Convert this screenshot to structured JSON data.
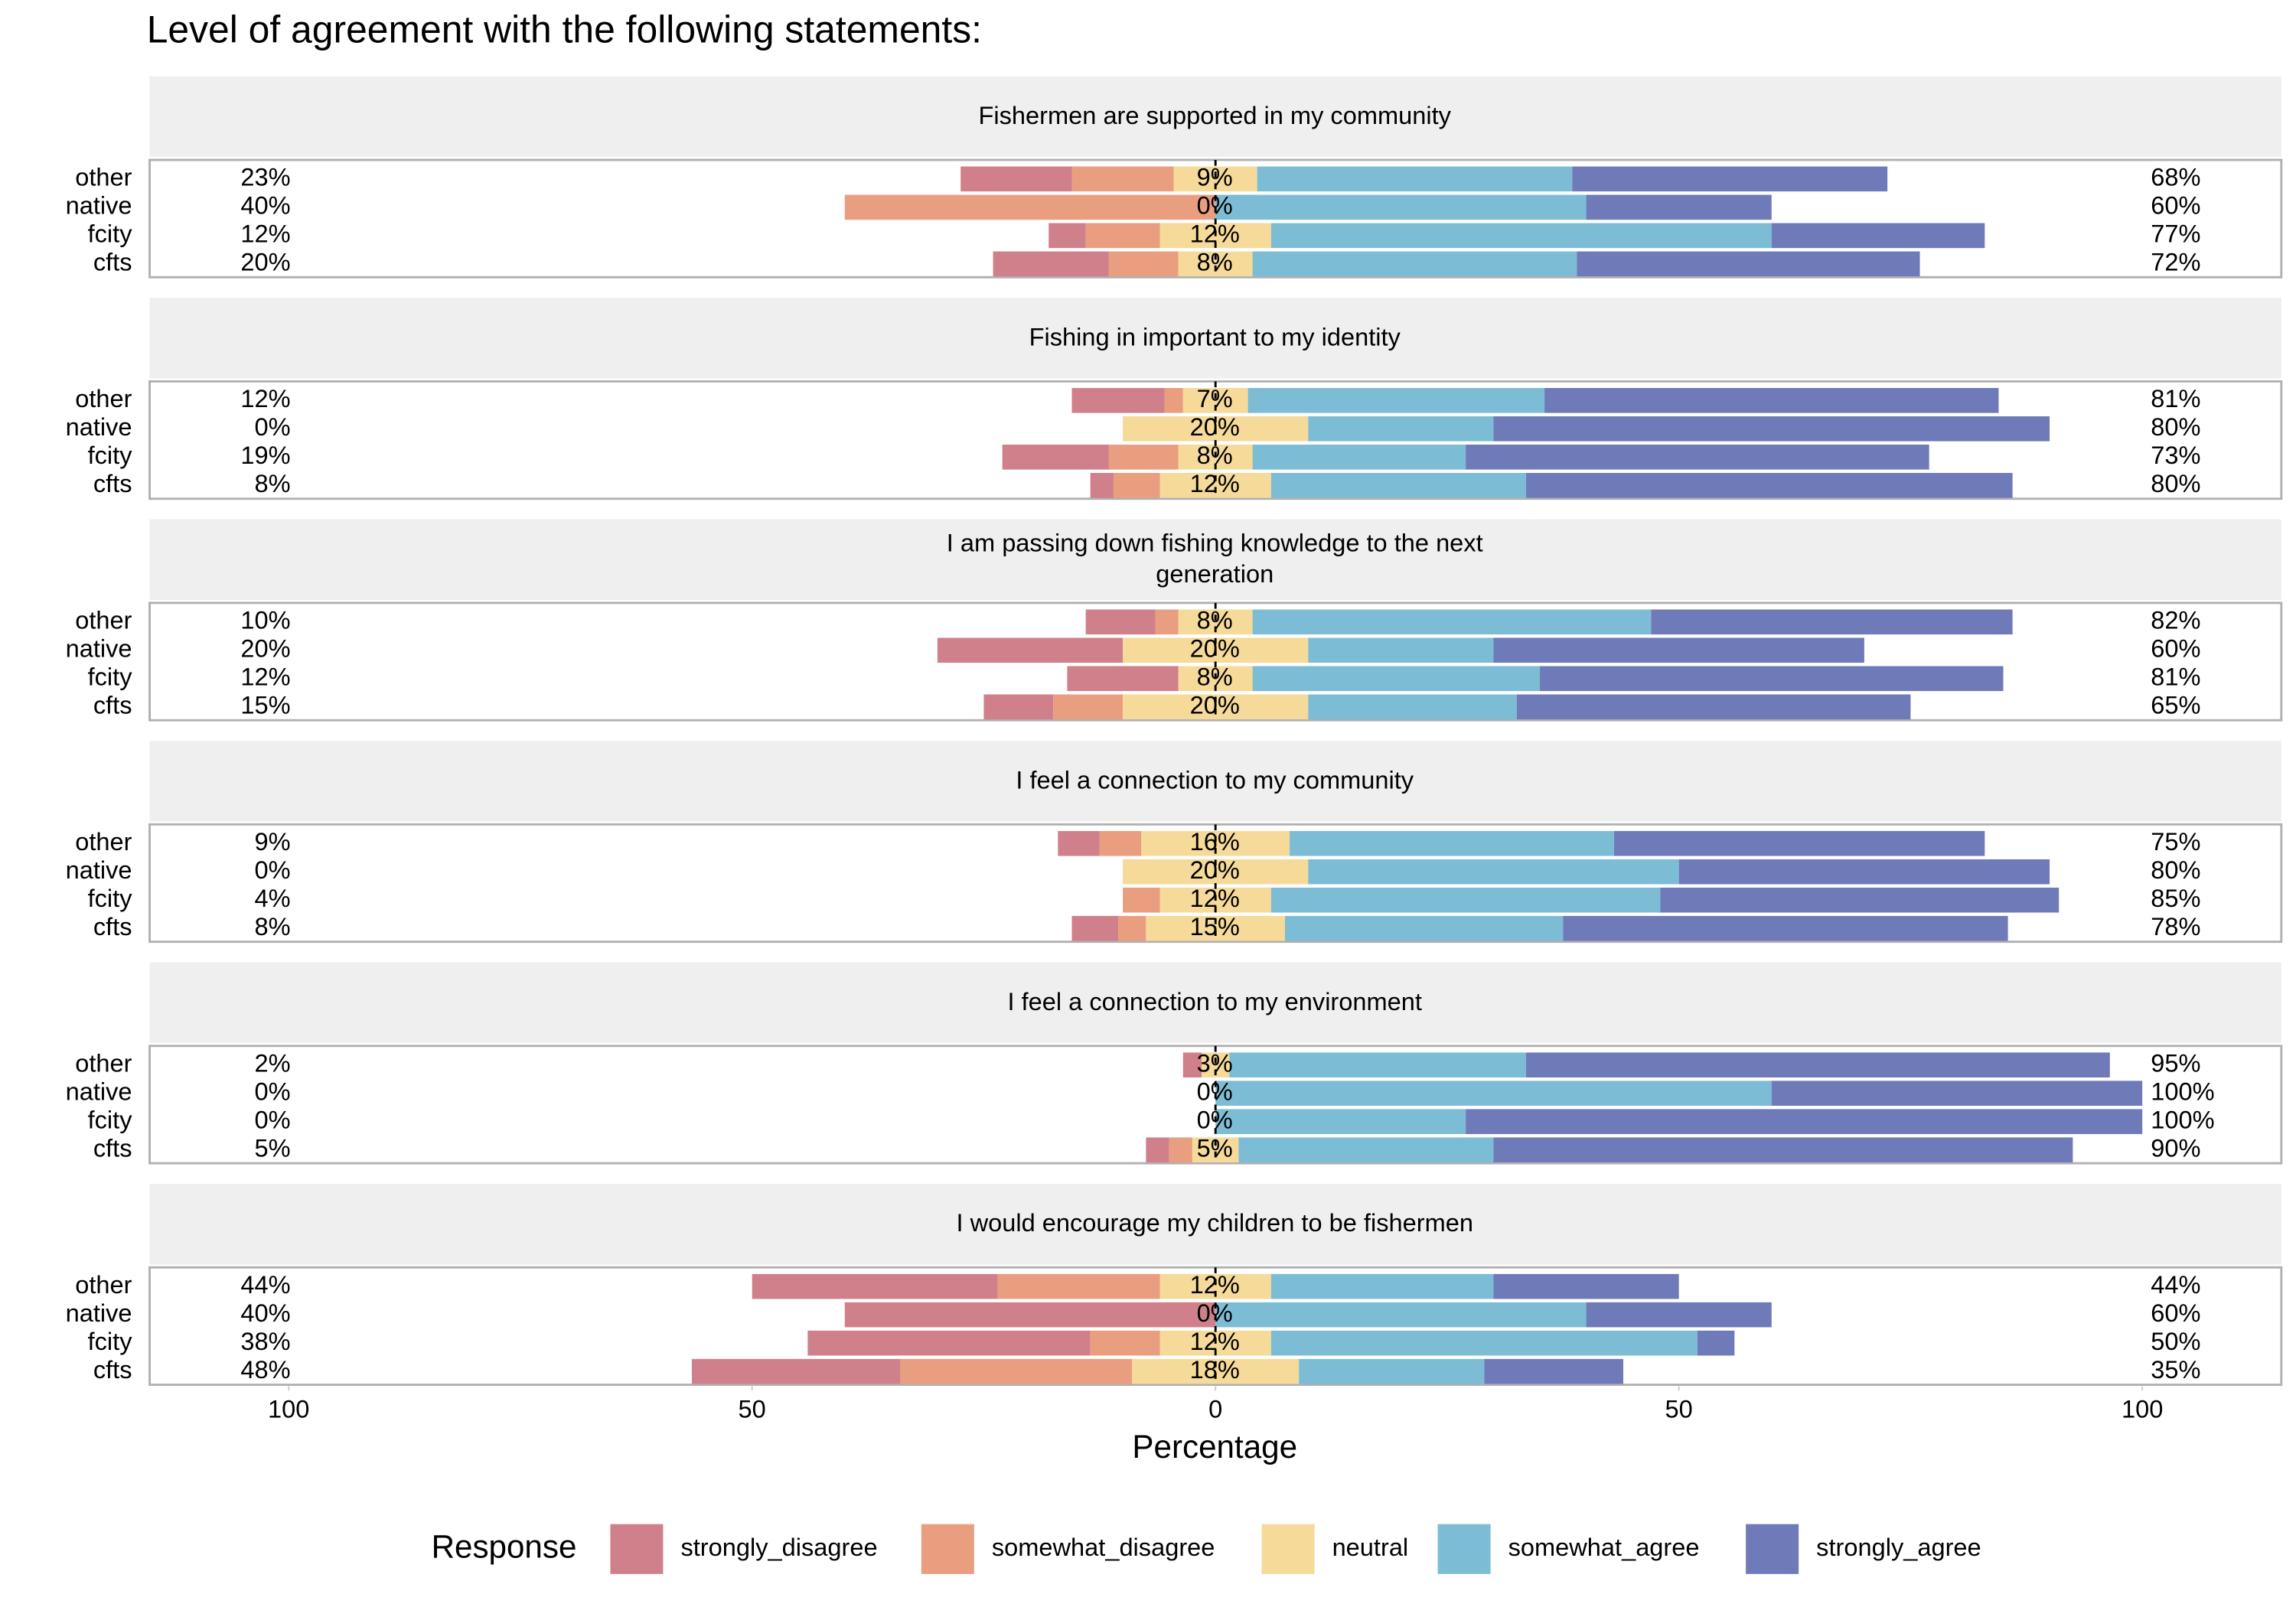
{
  "chart_data": {
    "type": "diverging_bar",
    "title": "Level of agreement with the following statements:",
    "xlabel": "Percentage",
    "legend_title": "Response",
    "responses": [
      {
        "name": "strongly_disagree",
        "color": "#d0808a"
      },
      {
        "name": "somewhat_disagree",
        "color": "#e99e80"
      },
      {
        "name": "neutral",
        "color": "#f5da9a"
      },
      {
        "name": "somewhat_agree",
        "color": "#7cbdd5"
      },
      {
        "name": "strongly_agree",
        "color": "#6f7ab9"
      }
    ],
    "xlim": [
      -115,
      115
    ],
    "xticks": [
      {
        "value": -100,
        "label": "100"
      },
      {
        "value": -50,
        "label": "50"
      },
      0,
      50,
      100
    ],
    "panels": [
      {
        "title_lines": [
          "Fishermen are supported in my community"
        ],
        "categories": [
          "other",
          "native",
          "fcity",
          "cfts"
        ],
        "values": [
          [
            12,
            11,
            9,
            34,
            34
          ],
          [
            0,
            40,
            0,
            40,
            20
          ],
          [
            4,
            8,
            12,
            54,
            23
          ],
          [
            12.5,
            7.5,
            8,
            35,
            37
          ]
        ],
        "low_labels": [
          "23%",
          "40%",
          "12%",
          "20%"
        ],
        "neutral_labels": [
          "9%",
          "0%",
          "12%",
          "8%"
        ],
        "high_labels": [
          "68%",
          "60%",
          "77%",
          "72%"
        ]
      },
      {
        "title_lines": [
          "Fishing in important to my identity"
        ],
        "categories": [
          "other",
          "native",
          "fcity",
          "cfts"
        ],
        "values": [
          [
            10,
            2,
            7,
            32,
            49
          ],
          [
            0,
            0,
            20,
            20,
            60
          ],
          [
            11.5,
            7.5,
            8,
            23,
            50
          ],
          [
            2.5,
            5,
            12,
            27.5,
            52.5
          ]
        ],
        "low_labels": [
          "12%",
          "0%",
          "19%",
          "8%"
        ],
        "neutral_labels": [
          "7%",
          "20%",
          "8%",
          "12%"
        ],
        "high_labels": [
          "81%",
          "80%",
          "73%",
          "80%"
        ]
      },
      {
        "title_lines": [
          "I am passing down fishing knowledge to the next",
          "generation"
        ],
        "categories": [
          "other",
          "native",
          "fcity",
          "cfts"
        ],
        "values": [
          [
            7.5,
            2.5,
            8,
            43,
            39
          ],
          [
            20,
            0,
            20,
            20,
            40
          ],
          [
            12,
            0,
            8,
            31,
            50
          ],
          [
            7.5,
            7.5,
            20,
            22.5,
            42.5
          ]
        ],
        "low_labels": [
          "10%",
          "20%",
          "12%",
          "15%"
        ],
        "neutral_labels": [
          "8%",
          "20%",
          "8%",
          "20%"
        ],
        "high_labels": [
          "82%",
          "60%",
          "81%",
          "65%"
        ]
      },
      {
        "title_lines": [
          "I feel a connection to my community"
        ],
        "categories": [
          "other",
          "native",
          "fcity",
          "cfts"
        ],
        "values": [
          [
            4.5,
            4.5,
            16,
            35,
            40
          ],
          [
            0,
            0,
            20,
            40,
            40
          ],
          [
            0,
            4,
            12,
            42,
            43
          ],
          [
            5,
            3,
            15,
            30,
            48
          ]
        ],
        "low_labels": [
          "9%",
          "0%",
          "4%",
          "8%"
        ],
        "neutral_labels": [
          "16%",
          "20%",
          "12%",
          "15%"
        ],
        "high_labels": [
          "75%",
          "80%",
          "85%",
          "78%"
        ]
      },
      {
        "title_lines": [
          "I feel a connection to my environment"
        ],
        "categories": [
          "other",
          "native",
          "fcity",
          "cfts"
        ],
        "values": [
          [
            2,
            0,
            3,
            32,
            63
          ],
          [
            0,
            0,
            0,
            60,
            40
          ],
          [
            0,
            0,
            0,
            27,
            73
          ],
          [
            2.5,
            2.5,
            5,
            27.5,
            62.5
          ]
        ],
        "low_labels": [
          "2%",
          "0%",
          "0%",
          "5%"
        ],
        "neutral_labels": [
          "3%",
          "0%",
          "0%",
          "5%"
        ],
        "high_labels": [
          "95%",
          "100%",
          "100%",
          "90%"
        ]
      },
      {
        "title_lines": [
          "I would encourage my children to be fishermen"
        ],
        "categories": [
          "other",
          "native",
          "fcity",
          "cfts"
        ],
        "values": [
          [
            26.5,
            17.5,
            12,
            24,
            20
          ],
          [
            40,
            0,
            0,
            40,
            20
          ],
          [
            30.5,
            7.5,
            12,
            46,
            4
          ],
          [
            22.5,
            25,
            18,
            20,
            15
          ]
        ],
        "low_labels": [
          "44%",
          "40%",
          "38%",
          "48%"
        ],
        "neutral_labels": [
          "12%",
          "0%",
          "12%",
          "18%"
        ],
        "high_labels": [
          "44%",
          "60%",
          "50%",
          "35%"
        ]
      }
    ]
  }
}
